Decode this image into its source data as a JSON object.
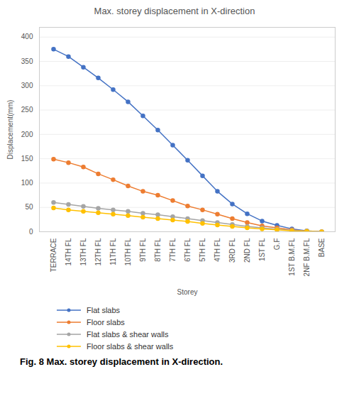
{
  "chart_data": {
    "type": "line",
    "title": "Max. storey displacement in X-direction",
    "xlabel": "Storey",
    "ylabel": "Displacement(mm)",
    "caption": "Fig. 8 Max. storey displacement in X-direction.",
    "categories": [
      "TERRACE",
      "14TH FL",
      "13TH FL",
      "12TH FL",
      "11TH FL",
      "10TH FL",
      "9TH FL",
      "8TH FL",
      "7TH FL",
      "6TH FL",
      "5TH FL",
      "4TH FL",
      "3RD FL",
      "2ND FL",
      "1ST FL",
      "G.F",
      "1ST B.M.FL",
      "2NF B.M.FL",
      "BASE"
    ],
    "series": [
      {
        "name": "Flat slabs",
        "color": "#4472C4",
        "marker": "o",
        "values": [
          375,
          360,
          338,
          316,
          292,
          267,
          238,
          209,
          178,
          147,
          115,
          83,
          57,
          37,
          22,
          13,
          6,
          2,
          0
        ]
      },
      {
        "name": "Floor slabs",
        "color": "#ED7D31",
        "marker": "o",
        "values": [
          149,
          142,
          133,
          119,
          107,
          94,
          83,
          75,
          64,
          53,
          45,
          36,
          27,
          19,
          12,
          8,
          4,
          1,
          0
        ]
      },
      {
        "name": "Flat slabs & shear walls",
        "color": "#A5A5A5",
        "marker": "o",
        "values": [
          60,
          56,
          52,
          48,
          45,
          42,
          38,
          35,
          31,
          27,
          23,
          19,
          15,
          11,
          8,
          5,
          3,
          1,
          0
        ]
      },
      {
        "name": "Floor slabs & shear walls",
        "color": "#FFC000",
        "marker": "o",
        "values": [
          49,
          45,
          42,
          39,
          36,
          33,
          30,
          27,
          24,
          21,
          17,
          14,
          11,
          8,
          6,
          4,
          2,
          1,
          0
        ]
      }
    ],
    "ylim": [
      0,
      420
    ],
    "yticks": [
      0,
      50,
      100,
      150,
      200,
      250,
      300,
      350,
      400
    ],
    "grid": true,
    "legend": "bottom"
  }
}
